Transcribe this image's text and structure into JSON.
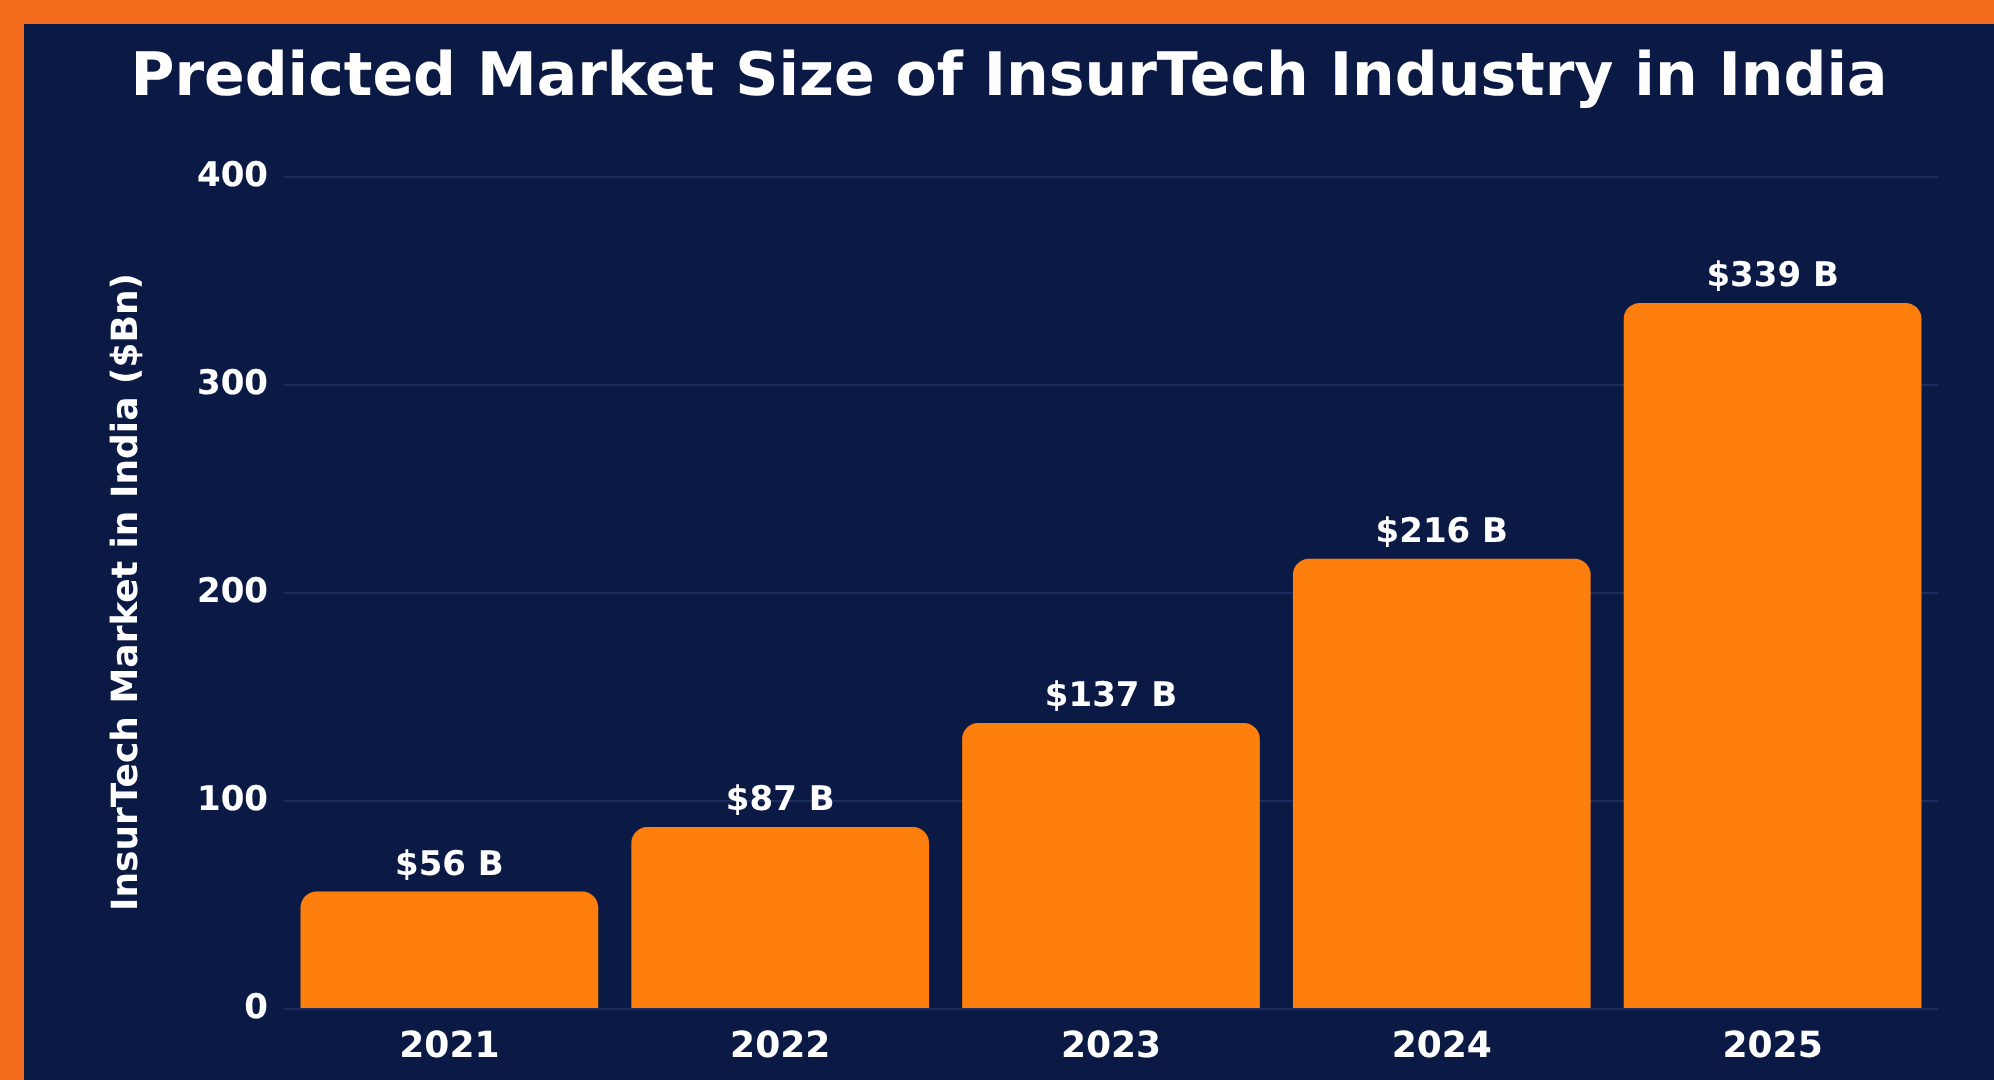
{
  "chart_data": {
    "type": "bar",
    "title": "Predicted Market Size of InsurTech Industry in India",
    "ylabel": "InsurTech Market in India ($Bn)",
    "categories": [
      "2021",
      "2022",
      "2023",
      "2024",
      "2025"
    ],
    "values": [
      56,
      87,
      137,
      216,
      339
    ],
    "value_labels": [
      "$56 B",
      "$87 B",
      "$137 B",
      "$216 B",
      "$339 B"
    ],
    "color": "#ff7f0e",
    "ylim": [
      0,
      400
    ],
    "yticks": [
      0,
      100,
      200,
      300,
      400
    ],
    "grid": "y"
  }
}
